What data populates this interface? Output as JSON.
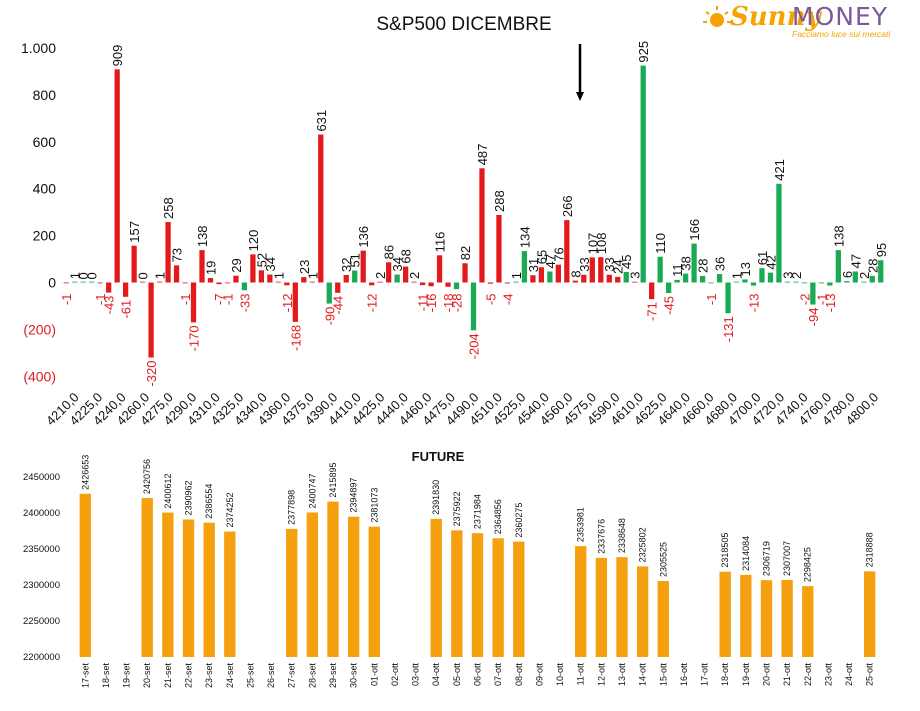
{
  "logo": {
    "brand_a": "Sunny",
    "brand_b": "MONEY",
    "tagline": "Facciamo luce sui mercati",
    "colors": {
      "orange": "#f4a300",
      "purple": "#7b5a9a"
    }
  },
  "colors": {
    "positive": "#1aaa55",
    "negative": "#e31a1c",
    "future_bar": "#f5a00e"
  },
  "chart_data": [
    {
      "type": "bar",
      "title": "S&P500 DICEMBRE",
      "annotation": "down arrow marker",
      "ylim": [
        -400,
        1000
      ],
      "yticks": [
        1000,
        800,
        600,
        400,
        200,
        0,
        -200,
        -400
      ],
      "ytick_labels": [
        "1.000",
        "800",
        "600",
        "400",
        "200",
        "0",
        "(200)",
        "(400)"
      ],
      "xtick_labels": [
        "4210,0",
        "4225,0",
        "4240,0",
        "4260,0",
        "4275,0",
        "4290,0",
        "4310,0",
        "4325,0",
        "4340,0",
        "4360,0",
        "4375,0",
        "4390,0",
        "4410,0",
        "4425,0",
        "4440,0",
        "4460,0",
        "4475,0",
        "4490,0",
        "4510,0",
        "4525,0",
        "4540,0",
        "4560,0",
        "4575,0",
        "4590,0",
        "4610,0",
        "4625,0",
        "4640,0",
        "4660,0",
        "4680,0",
        "4700,0",
        "4720,0",
        "4740,0",
        "4760,0",
        "4780,0",
        "4800,0"
      ],
      "series": [
        {
          "values": [
            -1,
            1,
            0,
            0,
            -1,
            -43,
            909,
            -61,
            157,
            0,
            -320,
            1,
            258,
            73,
            -1,
            -170,
            138,
            19,
            -7,
            -1,
            29,
            -33,
            120,
            52,
            34,
            1,
            -12,
            -168,
            23,
            1,
            631,
            -90,
            -44,
            32,
            51,
            136,
            -12,
            2,
            86,
            34,
            68,
            2,
            -11,
            -16,
            116,
            -18,
            -28,
            82,
            -204,
            487,
            -5,
            288,
            -4,
            1,
            134,
            31,
            65,
            47,
            76,
            266,
            8,
            33,
            107,
            108,
            33,
            24,
            45,
            3,
            925,
            -71,
            110,
            -45,
            11,
            38,
            166,
            28,
            -1,
            36,
            -131,
            1,
            13,
            -13,
            61,
            42,
            421,
            3,
            2,
            -2,
            -94,
            -1,
            -13,
            138,
            6,
            47,
            2,
            28,
            95
          ]
        },
        {
          "values": [
            "neg",
            "pos",
            "pos",
            "pos",
            "neg",
            "neg",
            "neg",
            "neg",
            "neg",
            "neg",
            "neg",
            "neg",
            "neg",
            "neg",
            "neg",
            "neg",
            "neg",
            "neg",
            "neg",
            "neg",
            "neg",
            "pos",
            "neg",
            "neg",
            "neg",
            "neg",
            "neg",
            "neg",
            "neg",
            "neg",
            "neg",
            "pos",
            "neg",
            "neg",
            "pos",
            "neg",
            "neg",
            "neg",
            "neg",
            "pos",
            "neg",
            "neg",
            "neg",
            "neg",
            "neg",
            "neg",
            "pos",
            "neg",
            "pos",
            "neg",
            "neg",
            "neg",
            "neg",
            "pos",
            "pos",
            "neg",
            "neg",
            "pos",
            "neg",
            "neg",
            "neg",
            "neg",
            "neg",
            "neg",
            "neg",
            "neg",
            "pos",
            "neg",
            "pos",
            "neg",
            "pos",
            "pos",
            "pos",
            "pos",
            "pos",
            "pos",
            "pos",
            "pos",
            "pos",
            "pos",
            "pos",
            "pos",
            "pos",
            "pos",
            "pos",
            "pos",
            "pos",
            "pos",
            "pos",
            "pos",
            "pos",
            "pos",
            "pos",
            "pos",
            "pos",
            "pos",
            "pos"
          ]
        }
      ]
    },
    {
      "type": "bar",
      "title": "FUTURE",
      "ylim": [
        2200000,
        2450000
      ],
      "yticks": [
        2200000,
        2250000,
        2300000,
        2350000,
        2400000,
        2450000
      ],
      "categories": [
        "17-set",
        "18-set",
        "19-set",
        "20-set",
        "21-set",
        "22-set",
        "23-set",
        "24-set",
        "25-set",
        "26-set",
        "27-set",
        "28-set",
        "29-set",
        "30-set",
        "01-ott",
        "02-ott",
        "03-ott",
        "04-ott",
        "05-ott",
        "06-ott",
        "07-ott",
        "08-ott",
        "09-ott",
        "10-ott",
        "11-ott",
        "12-ott",
        "13-ott",
        "14-ott",
        "15-ott",
        "16-ott",
        "17-ott",
        "18-ott",
        "19-ott",
        "20-ott",
        "21-ott",
        "22-ott",
        "23-ott",
        "24-ott",
        "25-ott"
      ],
      "values": [
        2426653,
        null,
        null,
        2420756,
        2400612,
        2390962,
        2386554,
        2374252,
        null,
        null,
        2377898,
        2400747,
        2415895,
        2394897,
        2381073,
        null,
        null,
        2391830,
        2375922,
        2371984,
        2364856,
        2360275,
        null,
        null,
        2353981,
        2337676,
        2338648,
        2325802,
        2305525,
        null,
        null,
        2318505,
        2314084,
        2306719,
        2307007,
        2298425,
        null,
        null,
        2318888
      ]
    }
  ]
}
